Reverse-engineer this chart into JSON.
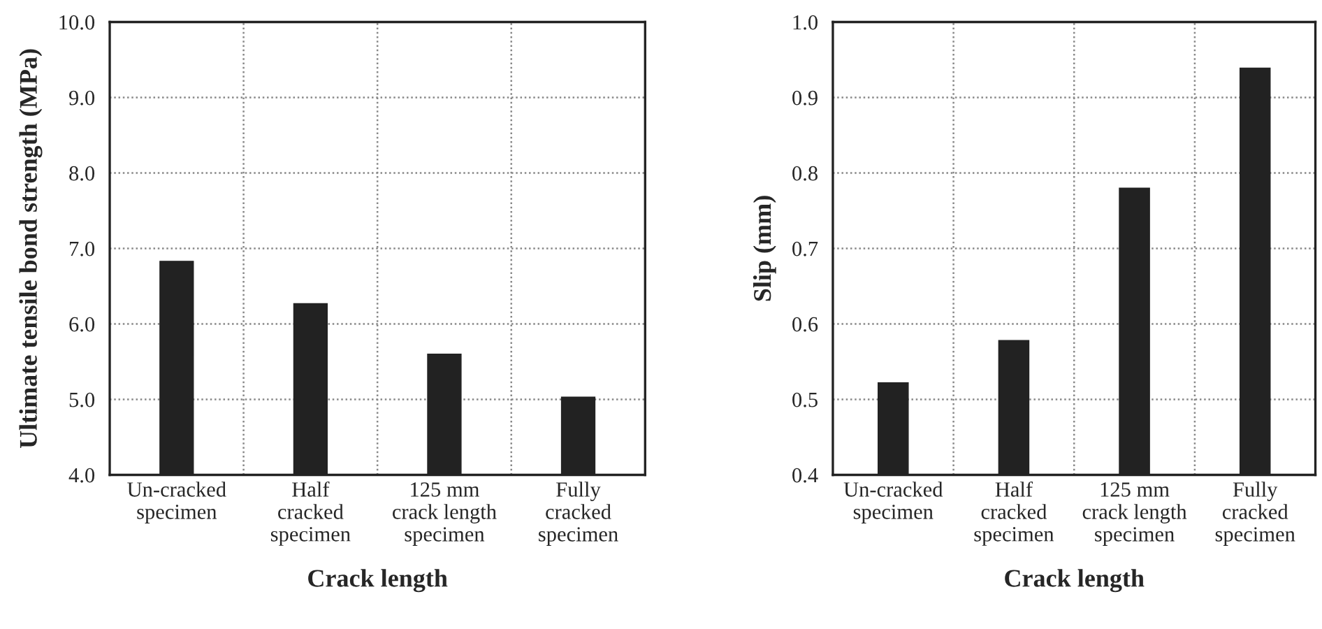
{
  "chart_data": [
    {
      "type": "bar",
      "xlabel": "Crack length",
      "ylabel": "Ultimate tensile bond strength (MPa)",
      "categories": [
        "Un-cracked\nspecimen",
        "Half\ncracked\nspecimen",
        "125 mm\ncrack length\nspecimen",
        "Fully\ncracked\nspecimen"
      ],
      "values": [
        6.83,
        6.27,
        5.6,
        5.03
      ],
      "color": "#222222",
      "ylim": [
        4.0,
        10.0
      ],
      "yticks": [
        {
          "value": 4,
          "label": "4.0"
        },
        {
          "value": 5,
          "label": "5.0"
        },
        {
          "value": 6,
          "label": "6.0"
        },
        {
          "value": 7,
          "label": "7.0"
        },
        {
          "value": 8,
          "label": "8.0"
        },
        {
          "value": 9,
          "label": "9.0"
        },
        {
          "value": 10,
          "label": "10.0"
        }
      ],
      "grid": true
    },
    {
      "type": "bar",
      "xlabel": "Crack length",
      "ylabel": "Slip (mm)",
      "categories": [
        "Un-cracked\nspecimen",
        "Half\ncracked\nspecimen",
        "125 mm\ncrack length\nspecimen",
        "Fully\ncracked\nspecimen"
      ],
      "values": [
        0.522,
        0.578,
        0.78,
        0.939
      ],
      "color": "#222222",
      "ylim": [
        0.4,
        1.0
      ],
      "yticks": [
        0.4,
        0.5,
        0.6,
        0.7,
        0.8,
        0.9,
        {
          "value": 1,
          "label": "1.0"
        }
      ],
      "grid": true
    }
  ]
}
